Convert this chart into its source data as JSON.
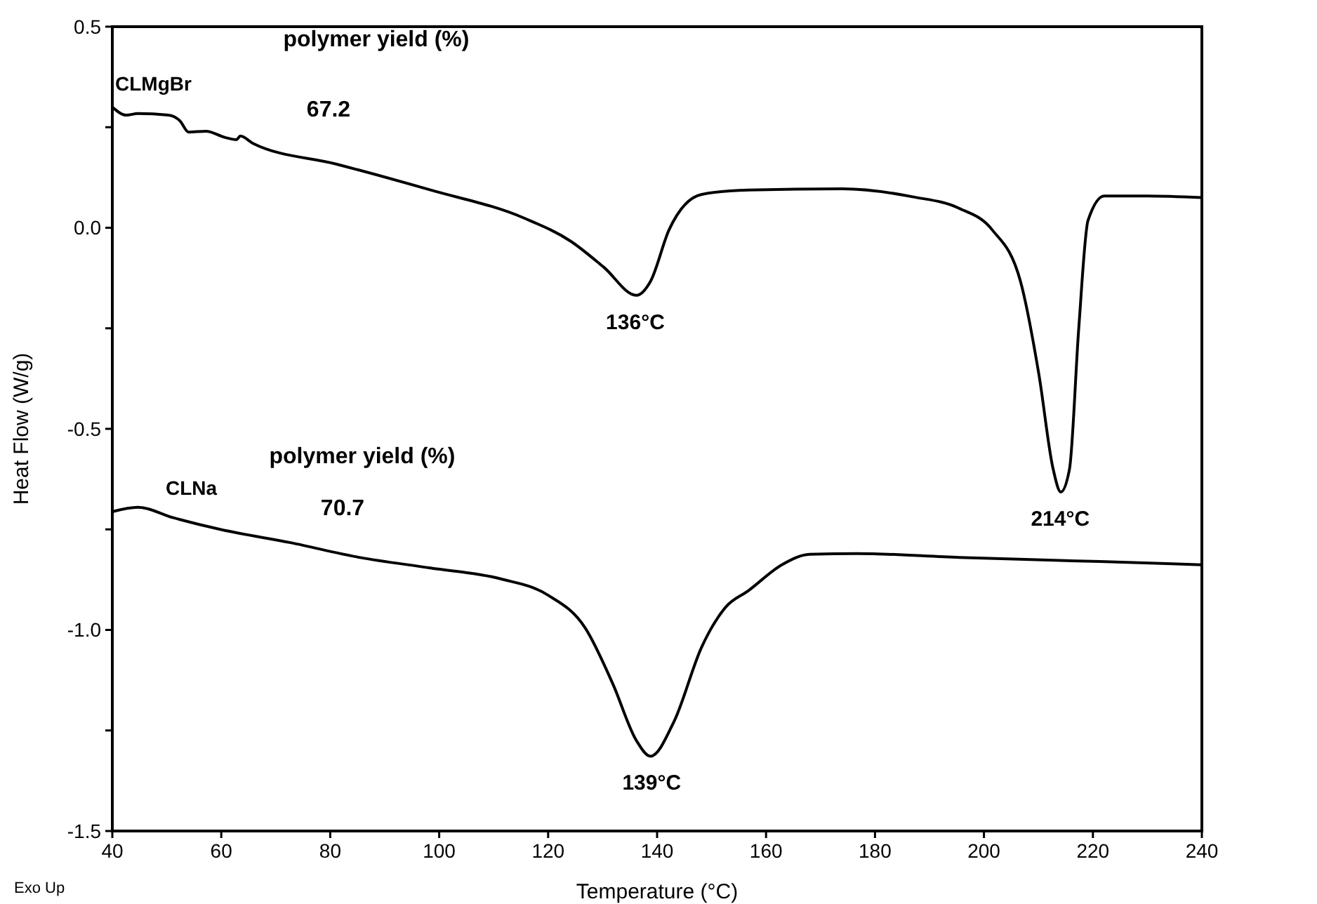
{
  "chart_data": {
    "type": "line",
    "xlabel": "Temperature (°C)",
    "ylabel": "Heat Flow (W/g)",
    "xlim": [
      40,
      240
    ],
    "xticks": [
      40,
      60,
      80,
      100,
      120,
      140,
      160,
      180,
      200,
      220,
      240
    ],
    "ylim": [
      -1.5,
      0.5
    ],
    "yticks": [
      {
        "value": -1.5,
        "label": "-1.5"
      },
      {
        "value": -1.25,
        "label": null
      },
      {
        "value": -1,
        "label": "-1.0"
      },
      {
        "value": -0.75,
        "label": null
      },
      {
        "value": -0.5,
        "label": "-0.5"
      },
      {
        "value": -0.25,
        "label": null
      },
      {
        "value": 0,
        "label": "0.0"
      },
      {
        "value": 0.25,
        "label": null
      },
      {
        "value": 0.5,
        "label": "0.5"
      }
    ],
    "grid": false,
    "legend": false,
    "marker": "none",
    "line_style": "solid",
    "series": [
      {
        "name": "CLMgBr",
        "color": "#000000",
        "x": [
          40,
          42.6,
          44.7,
          50.3,
          52.4,
          54,
          57.2,
          60.6,
          62.8,
          63.5,
          65.8,
          81.2,
          98.4,
          115.6,
          124.2,
          130.2,
          136.2,
          138.8,
          142.2,
          148.2,
          156.8,
          174,
          186.9,
          195.5,
          201.5,
          206.7,
          210.1,
          212.7,
          214.1,
          215.7,
          217.4,
          219.1,
          222.1,
          229.9,
          240
        ],
        "values": [
          0.3,
          0.28,
          0.284,
          0.28,
          0.266,
          0.238,
          0.24,
          0.225,
          0.219,
          0.228,
          0.21,
          0.158,
          0.094,
          0.024,
          -0.034,
          -0.098,
          -0.168,
          -0.133,
          -0.005,
          0.083,
          0.094,
          0.097,
          0.077,
          0.048,
          -0.005,
          -0.133,
          -0.366,
          -0.6,
          -0.657,
          -0.6,
          -0.25,
          0.018,
          0.079,
          0.079,
          0.075
        ]
      },
      {
        "name": "CLNa",
        "color": "#000000",
        "x": [
          40,
          44.7,
          51.2,
          59.8,
          72.7,
          85.5,
          98.4,
          111.3,
          119.9,
          126.8,
          131.9,
          136.2,
          138.8,
          143.1,
          148.2,
          152.6,
          156.8,
          162.9,
          168,
          176.6,
          195.5,
          221.3,
          240
        ],
        "values": [
          -0.706,
          -0.695,
          -0.721,
          -0.75,
          -0.783,
          -0.82,
          -0.846,
          -0.873,
          -0.913,
          -0.995,
          -1.135,
          -1.275,
          -1.314,
          -1.228,
          -1.042,
          -0.943,
          -0.902,
          -0.838,
          -0.812,
          -0.81,
          -0.82,
          -0.83,
          -0.838
        ]
      }
    ],
    "annotations": [
      "polymer yield (%)",
      "67.2",
      "polymer yield (%)",
      "70.7",
      "Exo Up",
      {
        "text": "136°C",
        "x": 136,
        "y": -0.168
      },
      {
        "text": "214°C",
        "x": 214,
        "y": -0.657
      },
      {
        "text": "139°C",
        "x": 139,
        "y": -1.314
      }
    ]
  }
}
